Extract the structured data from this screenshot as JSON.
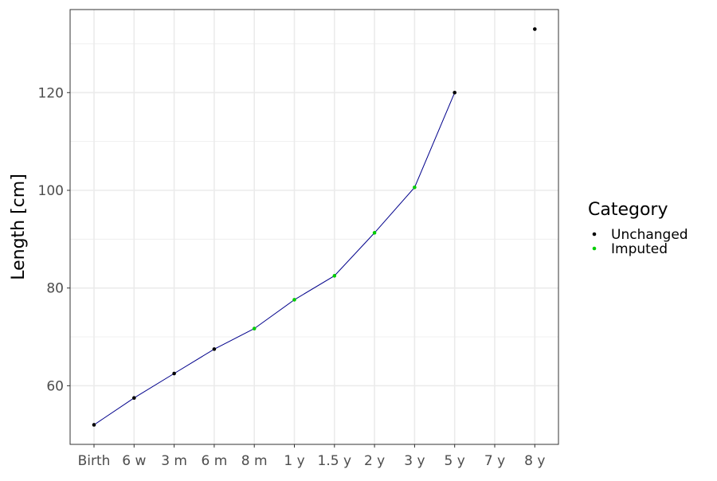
{
  "chart_data": {
    "type": "line",
    "title": "",
    "xlabel": "",
    "ylabel": "Length [cm]",
    "categories": [
      "Birth",
      "6 w",
      "3 m",
      "6 m",
      "8 m",
      "1 y",
      "1.5 y",
      "2 y",
      "3 y",
      "5 y",
      "7 y",
      "8 y"
    ],
    "ylim": [
      48,
      137
    ],
    "yticks": [
      60,
      80,
      100,
      120
    ],
    "grid": true,
    "legend": {
      "title": "Category",
      "position": "right",
      "entries": [
        {
          "label": "Unchanged",
          "color": "#000000"
        },
        {
          "label": "Imputed",
          "color": "#00cd00"
        }
      ]
    },
    "line_color": "#00008b",
    "points": [
      {
        "x": "Birth",
        "y": 52,
        "category": "Unchanged"
      },
      {
        "x": "6 w",
        "y": 57.5,
        "category": "Unchanged"
      },
      {
        "x": "3 m",
        "y": 62.5,
        "category": "Unchanged"
      },
      {
        "x": "6 m",
        "y": 67.5,
        "category": "Unchanged"
      },
      {
        "x": "8 m",
        "y": 71.7,
        "category": "Imputed"
      },
      {
        "x": "1 y",
        "y": 77.6,
        "category": "Imputed"
      },
      {
        "x": "1.5 y",
        "y": 82.5,
        "category": "Imputed"
      },
      {
        "x": "2 y",
        "y": 91.3,
        "category": "Imputed"
      },
      {
        "x": "3 y",
        "y": 100.6,
        "category": "Imputed"
      },
      {
        "x": "5 y",
        "y": 120,
        "category": "Unchanged"
      },
      {
        "x": "8 y",
        "y": 133,
        "category": "Unchanged"
      }
    ],
    "line_x": [
      "Birth",
      "6 w",
      "3 m",
      "6 m",
      "8 m",
      "1 y",
      "1.5 y",
      "2 y",
      "3 y",
      "5 y"
    ]
  }
}
